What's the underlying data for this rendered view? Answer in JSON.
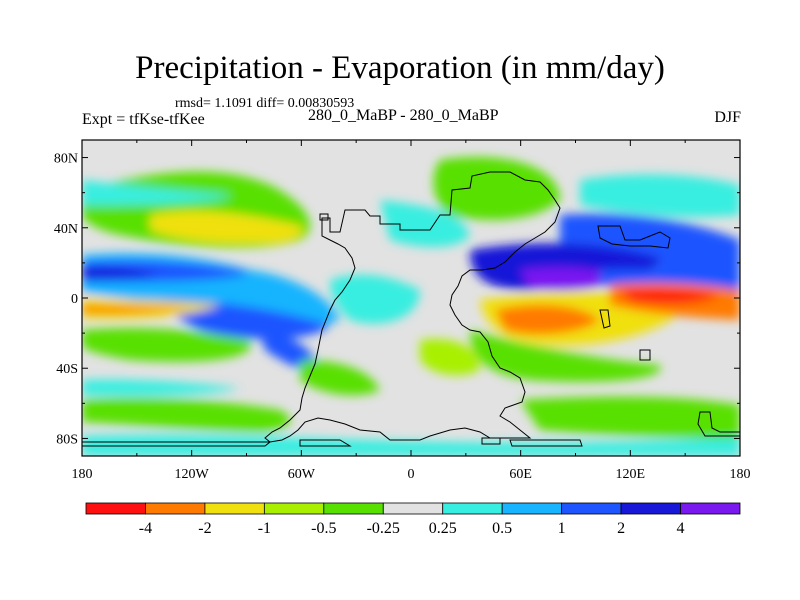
{
  "title": "Precipitation - Evaporation (in mm/day)",
  "stats": "rmsd= 1.1091 diff= 0.00830593",
  "experiment": "Expt = tfKse-tfKee",
  "period": "280_0_MaBP - 280_0_MaBP",
  "season": "DJF",
  "map_data": {
    "projection": "cylindrical equidistant",
    "lon_range": [
      -180,
      180
    ],
    "lat_range": [
      -90,
      90
    ],
    "x_tick_labels": [
      "180",
      "120W",
      "60W",
      "0",
      "60E",
      "120E",
      "180"
    ],
    "y_tick_labels": [
      "80N",
      "40N",
      "0",
      "40S",
      "80S"
    ],
    "colorbar": {
      "labels": [
        "-4",
        "-2",
        "-1",
        "-0.5",
        "-0.25",
        "0.25",
        "0.5",
        "1",
        "2",
        "4"
      ],
      "colors": [
        "#ff1010",
        "#ff7a00",
        "#f0e010",
        "#a8f000",
        "#58e000",
        "#e2e2e2",
        "#38eee0",
        "#18b4ff",
        "#1f55ff",
        "#1818d8",
        "#7a18f0"
      ]
    }
  }
}
